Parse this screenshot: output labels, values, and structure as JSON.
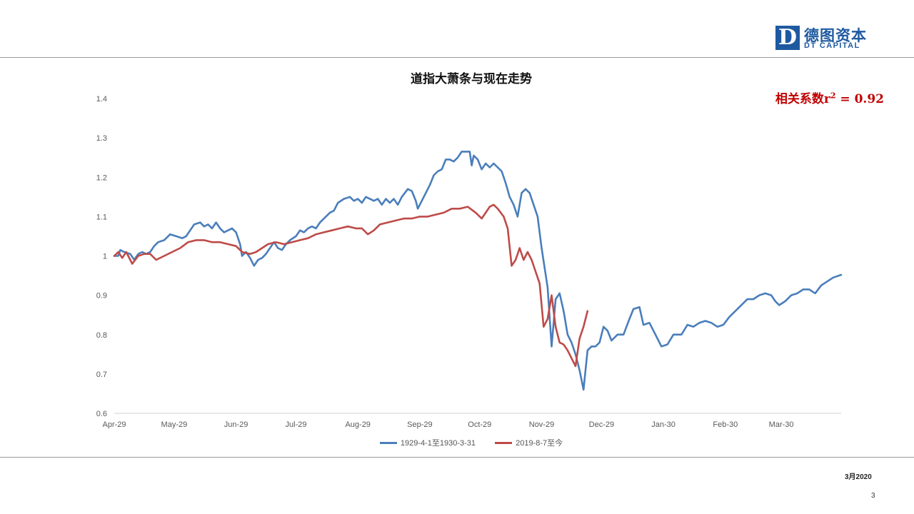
{
  "logo": {
    "mark": "D",
    "name_cn": "德图资本",
    "name_en": "DT CAPITAL"
  },
  "annotation": {
    "prefix": "相关系数r",
    "sup": "2",
    "suffix": " = 0.92"
  },
  "footer": {
    "date": "3月2020",
    "page": "3"
  },
  "colors": {
    "series_1929": "#4a7ebb",
    "series_2019": "#be4b48",
    "brand": "#1f5aa0",
    "annotation": "#c00000"
  },
  "chart_data": {
    "type": "line",
    "title": "道指大萧条与现在走势",
    "xlabel": "",
    "ylabel": "",
    "ylim": [
      0.6,
      1.4
    ],
    "yticks": [
      0.6,
      0.7,
      0.8,
      0.9,
      1,
      1.1,
      1.2,
      1.3,
      1.4
    ],
    "ytick_labels": [
      "0.6",
      "0.7",
      "0.8",
      "0.9",
      "1",
      "1.1",
      "1.2",
      "1.3",
      "1.4"
    ],
    "xticks": [
      {
        "label": "Apr-29",
        "date": "1929-04-01"
      },
      {
        "label": "May-29",
        "date": "1929-05-01"
      },
      {
        "label": "Jun-29",
        "date": "1929-06-01"
      },
      {
        "label": "Jul-29",
        "date": "1929-07-01"
      },
      {
        "label": "Aug-29",
        "date": "1929-08-01"
      },
      {
        "label": "Sep-29",
        "date": "1929-09-01"
      },
      {
        "label": "Oct-29",
        "date": "1929-10-01"
      },
      {
        "label": "Nov-29",
        "date": "1929-11-01"
      },
      {
        "label": "Dec-29",
        "date": "1929-12-01"
      },
      {
        "label": "Jan-30",
        "date": "1930-01-01"
      },
      {
        "label": "Feb-30",
        "date": "1930-02-01"
      },
      {
        "label": "Mar-30",
        "date": "1930-03-01"
      }
    ],
    "xlim": [
      "1929-04-01",
      "1930-03-31"
    ],
    "grid": false,
    "legend": "bottom",
    "series": [
      {
        "name": "1929-4-1至1930-3-31",
        "color": "#4a7ebb",
        "points": [
          [
            "1929-04-01",
            1.0
          ],
          [
            "1929-04-03",
            1.0
          ],
          [
            "1929-04-04",
            1.015
          ],
          [
            "1929-04-06",
            1.01
          ],
          [
            "1929-04-09",
            1.005
          ],
          [
            "1929-04-11",
            0.99
          ],
          [
            "1929-04-13",
            1.005
          ],
          [
            "1929-04-15",
            1.01
          ],
          [
            "1929-04-17",
            1.005
          ],
          [
            "1929-04-19",
            1.01
          ],
          [
            "1929-04-21",
            1.025
          ],
          [
            "1929-04-23",
            1.035
          ],
          [
            "1929-04-26",
            1.04
          ],
          [
            "1929-04-29",
            1.055
          ],
          [
            "1929-05-02",
            1.05
          ],
          [
            "1929-05-05",
            1.045
          ],
          [
            "1929-05-07",
            1.05
          ],
          [
            "1929-05-09",
            1.065
          ],
          [
            "1929-05-11",
            1.08
          ],
          [
            "1929-05-14",
            1.085
          ],
          [
            "1929-05-16",
            1.075
          ],
          [
            "1929-05-18",
            1.08
          ],
          [
            "1929-05-20",
            1.07
          ],
          [
            "1929-05-22",
            1.085
          ],
          [
            "1929-05-24",
            1.07
          ],
          [
            "1929-05-26",
            1.06
          ],
          [
            "1929-05-28",
            1.065
          ],
          [
            "1929-05-30",
            1.07
          ],
          [
            "1929-06-01",
            1.06
          ],
          [
            "1929-06-03",
            1.03
          ],
          [
            "1929-06-04",
            1.0
          ],
          [
            "1929-06-06",
            1.01
          ],
          [
            "1929-06-08",
            0.995
          ],
          [
            "1929-06-10",
            0.975
          ],
          [
            "1929-06-12",
            0.99
          ],
          [
            "1929-06-14",
            0.995
          ],
          [
            "1929-06-16",
            1.005
          ],
          [
            "1929-06-18",
            1.02
          ],
          [
            "1929-06-20",
            1.035
          ],
          [
            "1929-06-22",
            1.02
          ],
          [
            "1929-06-24",
            1.015
          ],
          [
            "1929-06-26",
            1.03
          ],
          [
            "1929-06-28",
            1.04
          ],
          [
            "1929-07-01",
            1.05
          ],
          [
            "1929-07-03",
            1.065
          ],
          [
            "1929-07-05",
            1.06
          ],
          [
            "1929-07-07",
            1.07
          ],
          [
            "1929-07-09",
            1.075
          ],
          [
            "1929-07-11",
            1.07
          ],
          [
            "1929-07-13",
            1.085
          ],
          [
            "1929-07-15",
            1.095
          ],
          [
            "1929-07-18",
            1.11
          ],
          [
            "1929-07-20",
            1.115
          ],
          [
            "1929-07-22",
            1.135
          ],
          [
            "1929-07-25",
            1.145
          ],
          [
            "1929-07-28",
            1.15
          ],
          [
            "1929-07-30",
            1.14
          ],
          [
            "1929-08-01",
            1.145
          ],
          [
            "1929-08-03",
            1.135
          ],
          [
            "1929-08-05",
            1.15
          ],
          [
            "1929-08-07",
            1.145
          ],
          [
            "1929-08-09",
            1.14
          ],
          [
            "1929-08-11",
            1.145
          ],
          [
            "1929-08-13",
            1.13
          ],
          [
            "1929-08-15",
            1.145
          ],
          [
            "1929-08-17",
            1.135
          ],
          [
            "1929-08-19",
            1.145
          ],
          [
            "1929-08-21",
            1.13
          ],
          [
            "1929-08-23",
            1.15
          ],
          [
            "1929-08-26",
            1.17
          ],
          [
            "1929-08-28",
            1.165
          ],
          [
            "1929-08-30",
            1.14
          ],
          [
            "1929-08-31",
            1.12
          ],
          [
            "1929-09-02",
            1.14
          ],
          [
            "1929-09-04",
            1.16
          ],
          [
            "1929-09-06",
            1.18
          ],
          [
            "1929-09-08",
            1.205
          ],
          [
            "1929-09-10",
            1.215
          ],
          [
            "1929-09-12",
            1.22
          ],
          [
            "1929-09-14",
            1.245
          ],
          [
            "1929-09-16",
            1.245
          ],
          [
            "1929-09-18",
            1.24
          ],
          [
            "1929-09-20",
            1.25
          ],
          [
            "1929-09-22",
            1.265
          ],
          [
            "1929-09-24",
            1.265
          ],
          [
            "1929-09-26",
            1.265
          ],
          [
            "1929-09-27",
            1.23
          ],
          [
            "1929-09-28",
            1.255
          ],
          [
            "1929-09-30",
            1.245
          ],
          [
            "1929-10-02",
            1.22
          ],
          [
            "1929-10-04",
            1.235
          ],
          [
            "1929-10-06",
            1.225
          ],
          [
            "1929-10-08",
            1.235
          ],
          [
            "1929-10-10",
            1.225
          ],
          [
            "1929-10-12",
            1.215
          ],
          [
            "1929-10-14",
            1.185
          ],
          [
            "1929-10-16",
            1.15
          ],
          [
            "1929-10-18",
            1.13
          ],
          [
            "1929-10-20",
            1.1
          ],
          [
            "1929-10-22",
            1.16
          ],
          [
            "1929-10-24",
            1.17
          ],
          [
            "1929-10-26",
            1.16
          ],
          [
            "1929-10-28",
            1.13
          ],
          [
            "1929-10-30",
            1.1
          ],
          [
            "1929-11-01",
            1.02
          ],
          [
            "1929-11-04",
            0.92
          ],
          [
            "1929-11-06",
            0.77
          ],
          [
            "1929-11-08",
            0.89
          ],
          [
            "1929-11-10",
            0.905
          ],
          [
            "1929-11-12",
            0.86
          ],
          [
            "1929-11-14",
            0.8
          ],
          [
            "1929-11-16",
            0.78
          ],
          [
            "1929-11-18",
            0.75
          ],
          [
            "1929-11-20",
            0.71
          ],
          [
            "1929-11-22",
            0.66
          ],
          [
            "1929-11-24",
            0.76
          ],
          [
            "1929-11-26",
            0.77
          ],
          [
            "1929-11-28",
            0.77
          ],
          [
            "1929-11-30",
            0.78
          ],
          [
            "1929-12-02",
            0.82
          ],
          [
            "1929-12-04",
            0.81
          ],
          [
            "1929-12-06",
            0.785
          ],
          [
            "1929-12-09",
            0.8
          ],
          [
            "1929-12-12",
            0.8
          ],
          [
            "1929-12-15",
            0.84
          ],
          [
            "1929-12-17",
            0.865
          ],
          [
            "1929-12-20",
            0.87
          ],
          [
            "1929-12-22",
            0.825
          ],
          [
            "1929-12-25",
            0.83
          ],
          [
            "1929-12-28",
            0.8
          ],
          [
            "1929-12-31",
            0.77
          ],
          [
            "1930-01-03",
            0.775
          ],
          [
            "1930-01-06",
            0.8
          ],
          [
            "1930-01-10",
            0.8
          ],
          [
            "1930-01-13",
            0.825
          ],
          [
            "1930-01-16",
            0.82
          ],
          [
            "1930-01-19",
            0.83
          ],
          [
            "1930-01-22",
            0.835
          ],
          [
            "1930-01-25",
            0.83
          ],
          [
            "1930-01-28",
            0.82
          ],
          [
            "1930-01-31",
            0.825
          ],
          [
            "1930-02-03",
            0.845
          ],
          [
            "1930-02-06",
            0.86
          ],
          [
            "1930-02-09",
            0.875
          ],
          [
            "1930-02-12",
            0.89
          ],
          [
            "1930-02-15",
            0.89
          ],
          [
            "1930-02-18",
            0.9
          ],
          [
            "1930-02-21",
            0.905
          ],
          [
            "1930-02-24",
            0.9
          ],
          [
            "1930-02-26",
            0.885
          ],
          [
            "1930-02-28",
            0.875
          ],
          [
            "1930-03-03",
            0.885
          ],
          [
            "1930-03-06",
            0.9
          ],
          [
            "1930-03-09",
            0.905
          ],
          [
            "1930-03-12",
            0.915
          ],
          [
            "1930-03-15",
            0.915
          ],
          [
            "1930-03-18",
            0.905
          ],
          [
            "1930-03-21",
            0.925
          ],
          [
            "1930-03-24",
            0.935
          ],
          [
            "1930-03-27",
            0.945
          ],
          [
            "1930-03-31",
            0.952
          ]
        ]
      },
      {
        "name": "2019-8-7至今",
        "color": "#be4b48",
        "points": [
          [
            "1929-04-01",
            1.0
          ],
          [
            "1929-04-03",
            1.01
          ],
          [
            "1929-04-05",
            0.995
          ],
          [
            "1929-04-07",
            1.01
          ],
          [
            "1929-04-10",
            0.98
          ],
          [
            "1929-04-13",
            1.0
          ],
          [
            "1929-04-16",
            1.005
          ],
          [
            "1929-04-19",
            1.005
          ],
          [
            "1929-04-22",
            0.99
          ],
          [
            "1929-04-26",
            1.0
          ],
          [
            "1929-04-30",
            1.01
          ],
          [
            "1929-05-04",
            1.02
          ],
          [
            "1929-05-08",
            1.035
          ],
          [
            "1929-05-12",
            1.04
          ],
          [
            "1929-05-16",
            1.04
          ],
          [
            "1929-05-20",
            1.035
          ],
          [
            "1929-05-24",
            1.035
          ],
          [
            "1929-05-28",
            1.03
          ],
          [
            "1929-06-01",
            1.025
          ],
          [
            "1929-06-04",
            1.01
          ],
          [
            "1929-06-08",
            1.005
          ],
          [
            "1929-06-11",
            1.01
          ],
          [
            "1929-06-14",
            1.02
          ],
          [
            "1929-06-17",
            1.03
          ],
          [
            "1929-06-21",
            1.035
          ],
          [
            "1929-06-25",
            1.03
          ],
          [
            "1929-06-29",
            1.035
          ],
          [
            "1929-07-03",
            1.04
          ],
          [
            "1929-07-07",
            1.045
          ],
          [
            "1929-07-11",
            1.055
          ],
          [
            "1929-07-15",
            1.06
          ],
          [
            "1929-07-19",
            1.065
          ],
          [
            "1929-07-23",
            1.07
          ],
          [
            "1929-07-27",
            1.075
          ],
          [
            "1929-07-31",
            1.07
          ],
          [
            "1929-08-03",
            1.07
          ],
          [
            "1929-08-06",
            1.055
          ],
          [
            "1929-08-09",
            1.065
          ],
          [
            "1929-08-12",
            1.08
          ],
          [
            "1929-08-16",
            1.085
          ],
          [
            "1929-08-20",
            1.09
          ],
          [
            "1929-08-24",
            1.095
          ],
          [
            "1929-08-28",
            1.095
          ],
          [
            "1929-09-01",
            1.1
          ],
          [
            "1929-09-05",
            1.1
          ],
          [
            "1929-09-09",
            1.105
          ],
          [
            "1929-09-13",
            1.11
          ],
          [
            "1929-09-17",
            1.12
          ],
          [
            "1929-09-21",
            1.12
          ],
          [
            "1929-09-25",
            1.125
          ],
          [
            "1929-09-29",
            1.11
          ],
          [
            "1929-10-02",
            1.095
          ],
          [
            "1929-10-04",
            1.11
          ],
          [
            "1929-10-06",
            1.125
          ],
          [
            "1929-10-08",
            1.13
          ],
          [
            "1929-10-10",
            1.12
          ],
          [
            "1929-10-13",
            1.1
          ],
          [
            "1929-10-15",
            1.07
          ],
          [
            "1929-10-17",
            0.975
          ],
          [
            "1929-10-19",
            0.99
          ],
          [
            "1929-10-21",
            1.02
          ],
          [
            "1929-10-23",
            0.99
          ],
          [
            "1929-10-25",
            1.01
          ],
          [
            "1929-10-27",
            0.99
          ],
          [
            "1929-10-29",
            0.96
          ],
          [
            "1929-10-31",
            0.93
          ],
          [
            "1929-11-02",
            0.82
          ],
          [
            "1929-11-04",
            0.84
          ],
          [
            "1929-11-06",
            0.9
          ],
          [
            "1929-11-08",
            0.82
          ],
          [
            "1929-11-10",
            0.78
          ],
          [
            "1929-11-12",
            0.775
          ],
          [
            "1929-11-14",
            0.76
          ],
          [
            "1929-11-16",
            0.74
          ],
          [
            "1929-11-18",
            0.72
          ],
          [
            "1929-11-20",
            0.79
          ],
          [
            "1929-11-22",
            0.82
          ],
          [
            "1929-11-24",
            0.86
          ]
        ]
      }
    ]
  }
}
